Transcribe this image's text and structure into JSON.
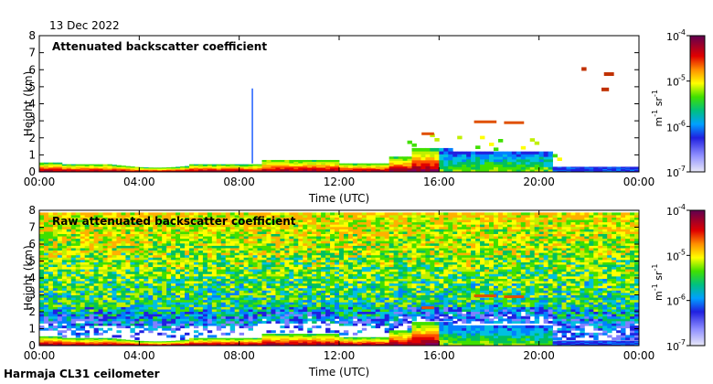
{
  "date_label": "13 Dec 2022",
  "footer_label": "Harmaja CL31 ceilometer",
  "colors": {
    "scale": [
      "#d9d9f5",
      "#8080ff",
      "#2020e0",
      "#0080ff",
      "#00c0e0",
      "#00c060",
      "#40e000",
      "#c0f000",
      "#ffff00",
      "#ffb000",
      "#ff5000",
      "#e00000",
      "#a00020",
      "#800060",
      "#60004a"
    ]
  },
  "chart_data": [
    {
      "type": "heatmap",
      "title": "Attenuated backscatter coefficient",
      "xlabel": "Time (UTC)",
      "ylabel": "Height (km)",
      "xticks": [
        "00:00",
        "04:00",
        "08:00",
        "12:00",
        "16:00",
        "20:00",
        "00:00"
      ],
      "yticks": [
        "0",
        "1",
        "2",
        "3",
        "4",
        "5",
        "6",
        "7",
        "8"
      ],
      "xlim_hours": [
        0,
        24
      ],
      "ylim_km": [
        0,
        8
      ],
      "colorbar": {
        "ticks": [
          "10",
          "10",
          "10",
          "10"
        ],
        "exponents": [
          "-7",
          "-6",
          "-5",
          "-4"
        ],
        "unit_m": "m",
        "unit_exp_m": "-1",
        "unit_sr": "sr",
        "unit_exp_sr": "-1",
        "scale": "log",
        "range": [
          1e-07,
          0.0001
        ]
      }
    },
    {
      "type": "heatmap",
      "title": "Raw attenuated backscatter coefficient",
      "xlabel": "Time (UTC)",
      "ylabel": "Height (km)",
      "xticks": [
        "00:00",
        "04:00",
        "08:00",
        "12:00",
        "16:00",
        "20:00",
        "00:00"
      ],
      "yticks": [
        "0",
        "1",
        "2",
        "3",
        "4",
        "5",
        "6",
        "7",
        "8"
      ],
      "xlim_hours": [
        0,
        24
      ],
      "ylim_km": [
        0,
        8
      ],
      "colorbar": {
        "ticks": [
          "10",
          "10",
          "10",
          "10"
        ],
        "exponents": [
          "-7",
          "-6",
          "-5",
          "-4"
        ],
        "unit_m": "m",
        "unit_exp_m": "-1",
        "unit_sr": "sr",
        "unit_exp_sr": "-1",
        "scale": "log",
        "range": [
          1e-07,
          0.0001
        ]
      }
    }
  ]
}
